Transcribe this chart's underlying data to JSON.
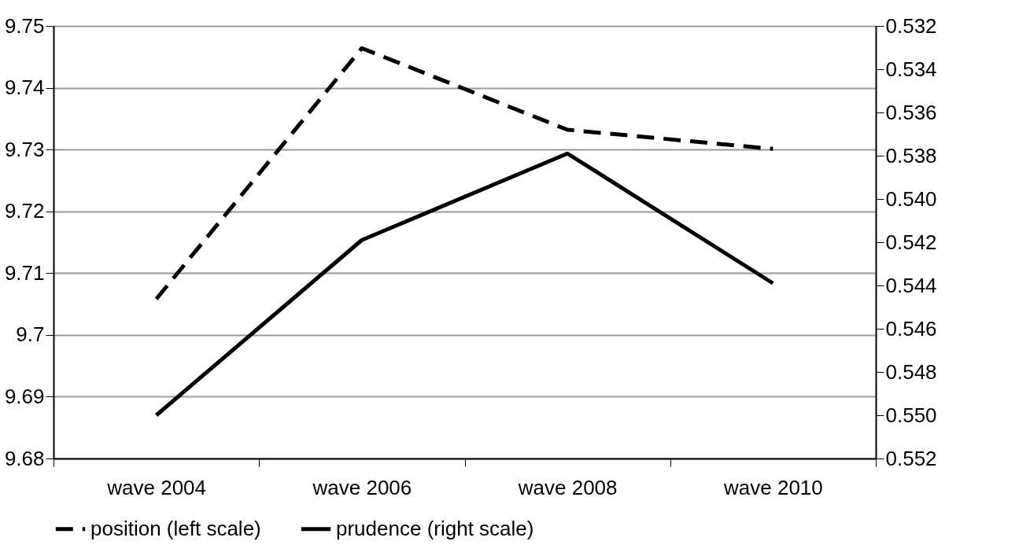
{
  "chart_data": {
    "type": "line",
    "categories": [
      "wave 2004",
      "wave 2006",
      "wave 2008",
      "wave 2010"
    ],
    "series": [
      {
        "name": "position (left scale)",
        "color": "#000000",
        "line_style": "dashed",
        "values": [
          9.7058,
          9.7464,
          9.7332,
          9.7301
        ]
      },
      {
        "name": "prudence (right scale)",
        "color": "#000000",
        "line_style": "solid",
        "axis": "y2",
        "values": [
          0.55,
          0.5419,
          0.5379,
          0.5439
        ]
      }
    ],
    "ylim": [
      9.68,
      9.75
    ],
    "yticks": [
      9.68,
      9.69,
      9.7,
      9.71,
      9.72,
      9.73,
      9.74,
      9.75
    ],
    "y2lim": [
      0.552,
      0.532
    ],
    "y2ticks": [
      {
        "value": 0.552,
        "label": "0.552"
      },
      {
        "value": 0.55,
        "label": "0.550"
      },
      {
        "value": 0.548,
        "label": "0.548"
      },
      {
        "value": 0.546,
        "label": "0.546"
      },
      {
        "value": 0.544,
        "label": "0.544"
      },
      {
        "value": 0.542,
        "label": "0.542"
      },
      {
        "value": 0.54,
        "label": "0.540"
      },
      {
        "value": 0.538,
        "label": "0.538"
      },
      {
        "value": 0.536,
        "label": "0.536"
      },
      {
        "value": 0.534,
        "label": "0.534"
      },
      {
        "value": 0.532,
        "label": "0.532"
      }
    ],
    "grid": "y",
    "legend": "bottom",
    "marker": "none"
  }
}
